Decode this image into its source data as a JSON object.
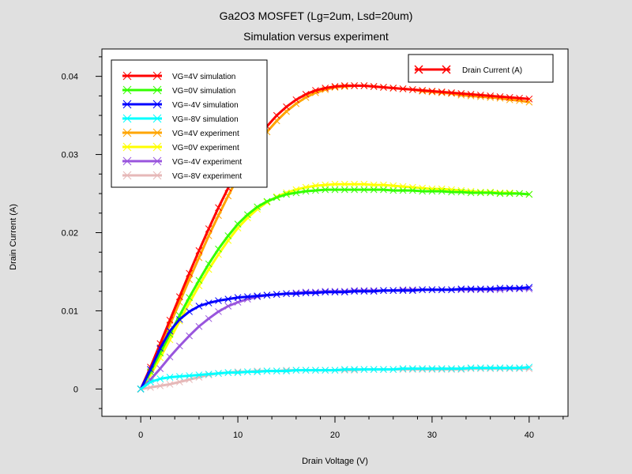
{
  "chart_data": {
    "type": "line",
    "title": "Ga2O3 MOSFET (Lg=2um, Lsd=20um)",
    "subtitle": "Simulation versus experiment",
    "xlabel": "Drain Voltage (V)",
    "ylabel": "Drain Current (A)",
    "xlim": [
      -4,
      44
    ],
    "ylim": [
      -0.0035,
      0.0435
    ],
    "x_ticks": [
      0,
      10,
      20,
      30,
      40
    ],
    "y_ticks": [
      0,
      0.01,
      0.02,
      0.03,
      0.04
    ],
    "x_tick_labels": [
      "0",
      "10",
      "20",
      "30",
      "40"
    ],
    "y_tick_labels": [
      "0",
      "0.01",
      "0.02",
      "0.03",
      "0.04"
    ],
    "legend_position": "top-left",
    "secondary_legend": {
      "label": "Drain Current (A)",
      "color": "#ff0000"
    },
    "series": [
      {
        "name": "VG=4V simulation",
        "color": "#ff0000",
        "x": [
          0,
          1,
          2,
          3,
          4,
          5,
          6,
          7,
          8,
          9,
          10,
          11,
          12,
          13,
          14,
          15,
          16,
          17,
          18,
          19,
          20,
          21,
          22,
          23,
          24,
          25,
          26,
          27,
          28,
          29,
          30,
          31,
          32,
          33,
          34,
          35,
          36,
          37,
          38,
          39,
          40
        ],
        "y": [
          0,
          0.0028,
          0.0058,
          0.0088,
          0.0118,
          0.0148,
          0.0177,
          0.0205,
          0.0232,
          0.0257,
          0.028,
          0.0301,
          0.032,
          0.0336,
          0.035,
          0.0361,
          0.037,
          0.0377,
          0.0382,
          0.0385,
          0.0387,
          0.0388,
          0.0388,
          0.0388,
          0.0387,
          0.0386,
          0.0385,
          0.0384,
          0.0383,
          0.0382,
          0.0381,
          0.038,
          0.0379,
          0.0378,
          0.0377,
          0.0376,
          0.0375,
          0.0374,
          0.0373,
          0.0372,
          0.0371
        ]
      },
      {
        "name": "VG=0V simulation",
        "color": "#33ff00",
        "x": [
          0,
          1,
          2,
          3,
          4,
          5,
          6,
          7,
          8,
          9,
          10,
          11,
          12,
          13,
          14,
          15,
          16,
          17,
          18,
          19,
          20,
          21,
          22,
          23,
          24,
          25,
          26,
          27,
          28,
          29,
          30,
          31,
          32,
          33,
          34,
          35,
          36,
          37,
          38,
          39,
          40
        ],
        "y": [
          0,
          0.0022,
          0.0046,
          0.007,
          0.0094,
          0.0117,
          0.0139,
          0.016,
          0.0179,
          0.0196,
          0.0211,
          0.0223,
          0.0233,
          0.024,
          0.0245,
          0.0249,
          0.0251,
          0.0253,
          0.0254,
          0.0255,
          0.0255,
          0.0255,
          0.0255,
          0.0255,
          0.0255,
          0.0255,
          0.0254,
          0.0254,
          0.0254,
          0.0253,
          0.0253,
          0.0253,
          0.0252,
          0.0252,
          0.0251,
          0.0251,
          0.0251,
          0.025,
          0.025,
          0.025,
          0.0249
        ]
      },
      {
        "name": "VG=-4V simulation",
        "color": "#0000ff",
        "x": [
          0,
          1,
          2,
          3,
          4,
          5,
          6,
          7,
          8,
          9,
          10,
          11,
          12,
          13,
          14,
          15,
          16,
          17,
          18,
          19,
          20,
          21,
          22,
          23,
          24,
          25,
          26,
          27,
          28,
          29,
          30,
          31,
          32,
          33,
          34,
          35,
          36,
          37,
          38,
          39,
          40
        ],
        "y": [
          0,
          0.0025,
          0.0052,
          0.0074,
          0.0089,
          0.0099,
          0.0106,
          0.011,
          0.0113,
          0.0115,
          0.0117,
          0.0118,
          0.0119,
          0.012,
          0.0121,
          0.0122,
          0.0122,
          0.0123,
          0.0123,
          0.0124,
          0.0124,
          0.0124,
          0.0125,
          0.0125,
          0.0125,
          0.0126,
          0.0126,
          0.0126,
          0.0126,
          0.0127,
          0.0127,
          0.0127,
          0.0127,
          0.0128,
          0.0128,
          0.0128,
          0.0128,
          0.0129,
          0.0129,
          0.0129,
          0.013
        ]
      },
      {
        "name": "VG=-8V simulation",
        "color": "#00ffff",
        "x": [
          0,
          1,
          2,
          3,
          4,
          5,
          6,
          7,
          8,
          9,
          10,
          11,
          12,
          13,
          14,
          15,
          16,
          17,
          18,
          19,
          20,
          21,
          22,
          23,
          24,
          25,
          26,
          27,
          28,
          29,
          30,
          31,
          32,
          33,
          34,
          35,
          36,
          37,
          38,
          39,
          40
        ],
        "y": [
          0,
          0.0009,
          0.0013,
          0.0015,
          0.0016,
          0.0017,
          0.0018,
          0.0019,
          0.002,
          0.0021,
          0.0021,
          0.0022,
          0.0022,
          0.0023,
          0.0023,
          0.0023,
          0.0024,
          0.0024,
          0.0024,
          0.0024,
          0.0024,
          0.0025,
          0.0025,
          0.0025,
          0.0025,
          0.0025,
          0.0025,
          0.0026,
          0.0026,
          0.0026,
          0.0026,
          0.0026,
          0.0026,
          0.0026,
          0.0027,
          0.0027,
          0.0027,
          0.0027,
          0.0027,
          0.0027,
          0.0028
        ]
      },
      {
        "name": "VG=4V experiment",
        "color": "#ffa500",
        "x": [
          0,
          1,
          2,
          3,
          4,
          5,
          6,
          7,
          8,
          9,
          10,
          11,
          12,
          13,
          14,
          15,
          16,
          17,
          18,
          19,
          20,
          21,
          22,
          23,
          24,
          25,
          26,
          27,
          28,
          29,
          30,
          31,
          32,
          33,
          34,
          35,
          36,
          37,
          38,
          39,
          40
        ],
        "y": [
          0,
          0.0025,
          0.0053,
          0.0082,
          0.0111,
          0.014,
          0.0168,
          0.0196,
          0.0222,
          0.0247,
          0.0271,
          0.0292,
          0.0312,
          0.0329,
          0.0343,
          0.0355,
          0.0365,
          0.0373,
          0.0379,
          0.0383,
          0.0386,
          0.0387,
          0.0388,
          0.0388,
          0.0387,
          0.0386,
          0.0385,
          0.0384,
          0.0383,
          0.0381,
          0.038,
          0.0379,
          0.0378,
          0.0376,
          0.0375,
          0.0374,
          0.0373,
          0.0372,
          0.037,
          0.0369,
          0.0367
        ]
      },
      {
        "name": "VG=0V experiment",
        "color": "#ffff00",
        "x": [
          0,
          1,
          2,
          3,
          4,
          5,
          6,
          7,
          8,
          9,
          10,
          11,
          12,
          13,
          14,
          15,
          16,
          17,
          18,
          19,
          20,
          21,
          22,
          23,
          24,
          25,
          26,
          27,
          28,
          29,
          30,
          31,
          32,
          33,
          34,
          35,
          36,
          37,
          38,
          39,
          40
        ],
        "y": [
          0,
          0.0018,
          0.004,
          0.0063,
          0.0087,
          0.011,
          0.0132,
          0.0153,
          0.0172,
          0.019,
          0.0206,
          0.0219,
          0.023,
          0.0239,
          0.0246,
          0.0251,
          0.0255,
          0.0258,
          0.026,
          0.0261,
          0.0262,
          0.0262,
          0.0262,
          0.0262,
          0.0261,
          0.0261,
          0.026,
          0.0259,
          0.0258,
          0.0257,
          0.0256,
          0.0256,
          0.0255,
          0.0254,
          0.0253,
          0.0252,
          0.0252,
          0.0251,
          0.0251,
          0.025,
          0.0249
        ]
      },
      {
        "name": "VG=-4V experiment",
        "color": "#9955dd",
        "x": [
          0,
          1,
          2,
          3,
          4,
          5,
          6,
          7,
          8,
          9,
          10,
          11,
          12,
          13,
          14,
          15,
          16,
          17,
          18,
          19,
          20,
          21,
          22,
          23,
          24,
          25,
          26,
          27,
          28,
          29,
          30,
          31,
          32,
          33,
          34,
          35,
          36,
          37,
          38,
          39,
          40
        ],
        "y": [
          0,
          0.0012,
          0.0026,
          0.0041,
          0.0055,
          0.0068,
          0.008,
          0.009,
          0.0099,
          0.0106,
          0.0111,
          0.0115,
          0.0118,
          0.012,
          0.0121,
          0.0122,
          0.0123,
          0.0124,
          0.0124,
          0.0125,
          0.0125,
          0.0125,
          0.0126,
          0.0126,
          0.0126,
          0.0126,
          0.0126,
          0.0127,
          0.0127,
          0.0127,
          0.0127,
          0.0127,
          0.0127,
          0.0127,
          0.0127,
          0.0127,
          0.0127,
          0.0127,
          0.0128,
          0.0128,
          0.0128
        ]
      },
      {
        "name": "VG=-8V experiment",
        "color": "#e6b8b8",
        "x": [
          0,
          1,
          2,
          3,
          4,
          5,
          6,
          7,
          8,
          9,
          10,
          11,
          12,
          13,
          14,
          15,
          16,
          17,
          18,
          19,
          20,
          21,
          22,
          23,
          24,
          25,
          26,
          27,
          28,
          29,
          30,
          31,
          32,
          33,
          34,
          35,
          36,
          37,
          38,
          39,
          40
        ],
        "y": [
          0,
          0.0002,
          0.0004,
          0.0006,
          0.0009,
          0.0012,
          0.0015,
          0.0018,
          0.002,
          0.0021,
          0.0022,
          0.0022,
          0.0023,
          0.0023,
          0.0023,
          0.0024,
          0.0024,
          0.0024,
          0.0024,
          0.0024,
          0.0024,
          0.0024,
          0.0024,
          0.0025,
          0.0025,
          0.0025,
          0.0025,
          0.0025,
          0.0025,
          0.0025,
          0.0025,
          0.0025,
          0.0025,
          0.0025,
          0.0026,
          0.0026,
          0.0026,
          0.0026,
          0.0026,
          0.0026,
          0.0026
        ]
      }
    ]
  }
}
